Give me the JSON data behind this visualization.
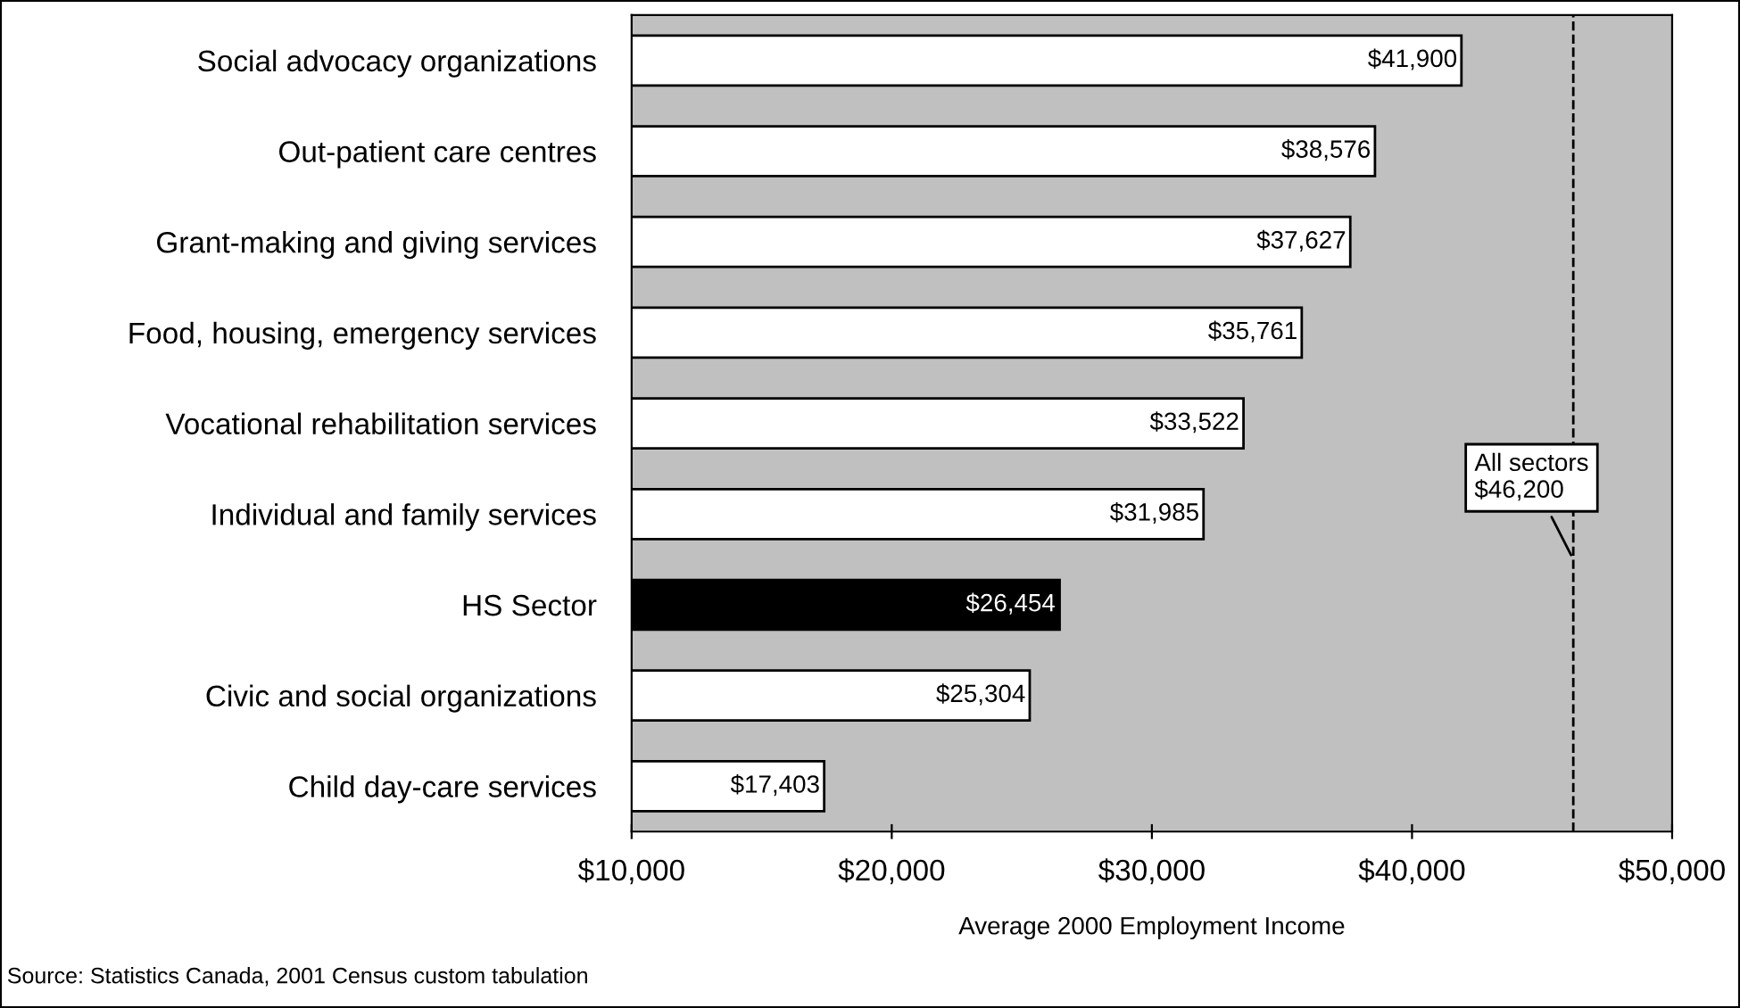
{
  "chart_data": {
    "type": "bar",
    "orientation": "horizontal",
    "categories": [
      "Social advocacy organizations",
      "Out-patient care centres",
      "Grant-making and giving services",
      "Food, housing, emergency services",
      "Vocational rehabilitation services",
      "Individual and family services",
      "HS Sector",
      "Civic and social organizations",
      "Child day-care services"
    ],
    "values": [
      41900,
      38576,
      37627,
      35761,
      33522,
      31985,
      26454,
      25304,
      17403
    ],
    "value_labels": [
      "$41,900",
      "$38,576",
      "$37,627",
      "$35,761",
      "$33,522",
      "$31,985",
      "$26,454",
      "$25,304",
      "$17,403"
    ],
    "colors": [
      "#ffffff",
      "#ffffff",
      "#ffffff",
      "#ffffff",
      "#ffffff",
      "#ffffff",
      "#000000",
      "#ffffff",
      "#ffffff"
    ],
    "xlim": [
      10000,
      50000
    ],
    "xticks": [
      {
        "value": 10000,
        "label": "$10,000"
      },
      {
        "value": 20000,
        "label": "$20,000"
      },
      {
        "value": 30000,
        "label": "$30,000"
      },
      {
        "value": 40000,
        "label": "$40,000"
      },
      {
        "value": 50000,
        "label": "$50,000"
      }
    ],
    "xlabel": "Average 2000 Employment Income",
    "ref_lines": [
      {
        "axis": "x",
        "value": 46200,
        "label": "All sectors\n$46,200",
        "color": "#000000",
        "line_style": "dashed"
      }
    ],
    "annotations": [
      "Source: Statistics Canada, 2001 Census custom tabulation"
    ],
    "grid": false,
    "legend": false
  }
}
